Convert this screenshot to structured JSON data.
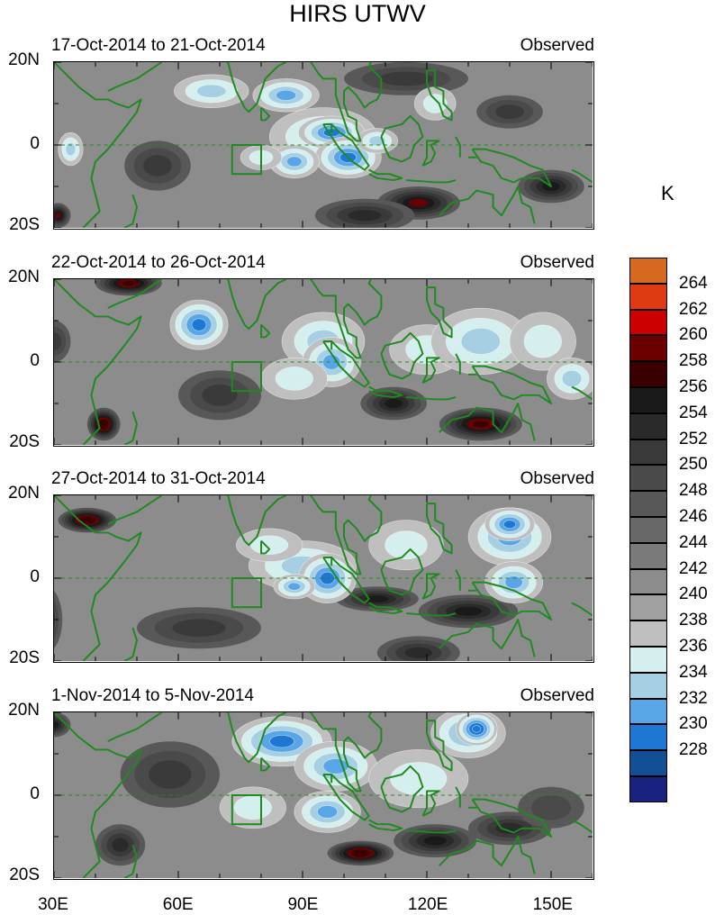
{
  "title": "HIRS UTWV",
  "unit": "K",
  "panels": [
    {
      "date": "17-Oct-2014 to 21-Oct-2014",
      "label": "Observed",
      "blobs": [
        [
          68,
          13,
          9,
          4,
          3
        ],
        [
          86,
          12,
          8,
          4,
          4
        ],
        [
          95,
          2,
          13,
          7,
          3
        ],
        [
          97,
          3,
          8,
          4,
          5
        ],
        [
          101,
          -3,
          8,
          5,
          5
        ],
        [
          88,
          -4,
          6,
          4,
          4
        ],
        [
          108,
          1,
          5,
          3,
          3
        ],
        [
          34,
          -1,
          3,
          4,
          3
        ],
        [
          80,
          -3,
          5,
          3,
          2
        ],
        [
          122,
          10,
          5,
          4,
          2
        ],
        [
          118,
          -14,
          10,
          4,
          -6
        ],
        [
          150,
          -10,
          8,
          4,
          -5
        ],
        [
          105,
          -17,
          12,
          4,
          -4
        ],
        [
          55,
          -5,
          8,
          6,
          -3
        ],
        [
          31,
          -17,
          3,
          3,
          -6
        ],
        [
          140,
          8,
          8,
          4,
          -3
        ],
        [
          115,
          16,
          15,
          4,
          -3
        ]
      ]
    },
    {
      "date": "22-Oct-2014 to 26-Oct-2014",
      "label": "Observed",
      "blobs": [
        [
          65,
          9,
          7,
          6,
          5
        ],
        [
          95,
          5,
          10,
          7,
          3
        ],
        [
          97,
          0,
          7,
          6,
          4
        ],
        [
          120,
          3,
          9,
          6,
          2
        ],
        [
          133,
          5,
          12,
          8,
          3
        ],
        [
          148,
          5,
          8,
          7,
          2
        ],
        [
          155,
          -4,
          6,
          5,
          3
        ],
        [
          88,
          -4,
          8,
          5,
          2
        ],
        [
          42,
          -15,
          4,
          4,
          -8
        ],
        [
          48,
          19,
          8,
          3,
          -7
        ],
        [
          133,
          -15,
          10,
          4,
          -7
        ],
        [
          112,
          -10,
          8,
          4,
          -5
        ],
        [
          30,
          5,
          4,
          5,
          -3
        ],
        [
          70,
          -8,
          10,
          6,
          -3
        ]
      ]
    },
    {
      "date": "27-Oct-2014 to 31-Oct-2014",
      "label": "Observed",
      "blobs": [
        [
          90,
          3,
          13,
          6,
          3
        ],
        [
          96,
          0,
          7,
          6,
          5
        ],
        [
          88,
          -2,
          5,
          3,
          4
        ],
        [
          115,
          8,
          9,
          6,
          2
        ],
        [
          140,
          10,
          10,
          7,
          4
        ],
        [
          140,
          13,
          6,
          4,
          5
        ],
        [
          141,
          -1,
          7,
          5,
          4
        ],
        [
          82,
          8,
          8,
          4,
          2
        ],
        [
          38,
          14,
          7,
          3,
          -8
        ],
        [
          108,
          -5,
          10,
          3,
          -5
        ],
        [
          130,
          -8,
          12,
          4,
          -5
        ],
        [
          118,
          -18,
          10,
          4,
          -4
        ],
        [
          65,
          -12,
          15,
          5,
          -3
        ],
        [
          28,
          -10,
          4,
          8,
          -4
        ]
      ]
    },
    {
      "date": "1-Nov-2014 to 5-Nov-2014",
      "label": "Observed",
      "blobs": [
        [
          85,
          13,
          12,
          6,
          5
        ],
        [
          98,
          7,
          10,
          6,
          4
        ],
        [
          96,
          -4,
          8,
          5,
          4
        ],
        [
          130,
          15,
          9,
          6,
          4
        ],
        [
          132,
          16,
          5,
          4,
          6
        ],
        [
          118,
          4,
          12,
          7,
          2
        ],
        [
          78,
          -3,
          8,
          5,
          2
        ],
        [
          104,
          -14,
          8,
          3,
          -8
        ],
        [
          122,
          -11,
          10,
          4,
          -5
        ],
        [
          140,
          -8,
          10,
          4,
          -4
        ],
        [
          30,
          17,
          4,
          3,
          -5
        ],
        [
          46,
          -12,
          6,
          5,
          -4
        ],
        [
          58,
          5,
          12,
          8,
          -3
        ],
        [
          150,
          -3,
          8,
          5,
          -2
        ]
      ]
    }
  ],
  "lat_labels": [
    "20N",
    "0",
    "20S"
  ],
  "lon_labels": [
    "30E",
    "60E",
    "90E",
    "120E",
    "150E"
  ],
  "colorbar": {
    "labels": [
      "264",
      "262",
      "260",
      "258",
      "256",
      "254",
      "252",
      "250",
      "248",
      "246",
      "244",
      "242",
      "240",
      "238",
      "236",
      "234",
      "232",
      "230",
      "228"
    ],
    "colors": [
      "#d4691f",
      "#e03a12",
      "#cc0000",
      "#6b0000",
      "#3a0000",
      "#1a1a1a",
      "#2a2a2a",
      "#3a3a3a",
      "#4a4a4a",
      "#585858",
      "#686868",
      "#7a7a7a",
      "#8c8c8c",
      "#a0a0a0",
      "#bfbfbf",
      "#d5efef",
      "#a7cfe3",
      "#58a6e8",
      "#1e77d2",
      "#134f96",
      "#1a2280"
    ]
  }
}
